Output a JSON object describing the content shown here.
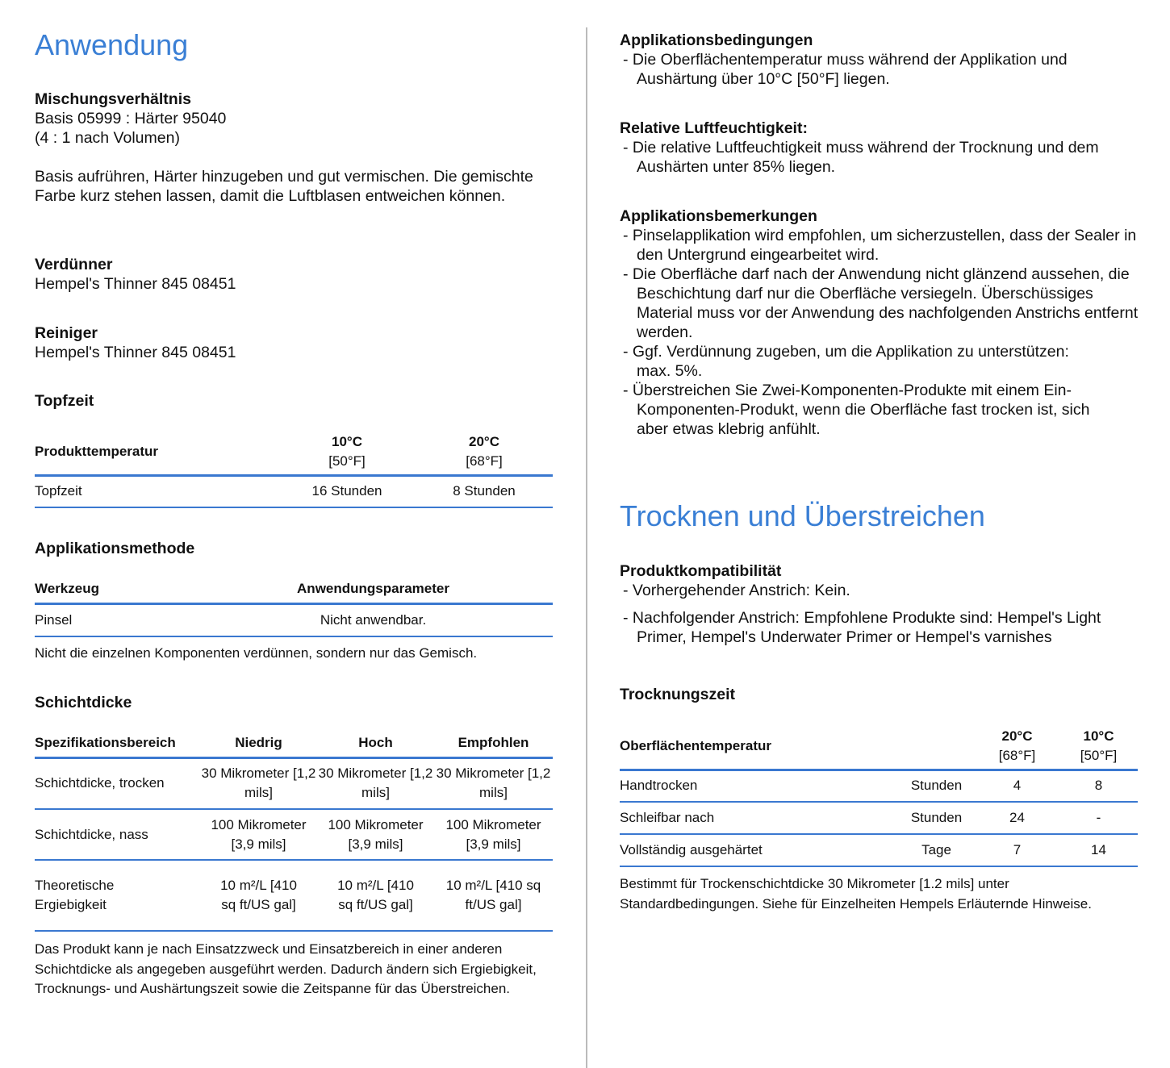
{
  "left": {
    "title": "Anwendung",
    "mixing": {
      "heading": "Mischungsverhältnis",
      "lines": [
        "Basis 05999 : Härter 95040",
        "(4 : 1 nach Volumen)"
      ]
    },
    "mixing_text": "Basis aufrühren, Härter hinzugeben und gut vermischen. Die gemischte Farbe kurz stehen lassen, damit die Luftblasen entweichen können.",
    "thinner": {
      "heading": "Verdünner",
      "value": "Hempel's Thinner 845 08451"
    },
    "cleaner": {
      "heading": "Reiniger",
      "value": "Hempel's Thinner 845 08451"
    },
    "potlife": {
      "heading": "Topfzeit",
      "table": {
        "headers": [
          {
            "label": "Produkttemperatur"
          },
          {
            "label": "10°C",
            "sub": "[50°F]"
          },
          {
            "label": "20°C",
            "sub": "[68°F]"
          }
        ],
        "rows": [
          [
            "Topfzeit",
            "16 Stunden",
            "8 Stunden"
          ]
        ]
      }
    },
    "method": {
      "heading": "Applikationsmethode",
      "table": {
        "headers": [
          "Werkzeug",
          "Anwendungsparameter"
        ],
        "rows": [
          [
            "Pinsel",
            "Nicht anwendbar."
          ]
        ]
      },
      "note": "Nicht die einzelnen Komponenten verdünnen, sondern nur das Gemisch."
    },
    "film": {
      "heading": "Schichtdicke",
      "table": {
        "headers": [
          "Spezifikationsbereich",
          "Niedrig",
          "Hoch",
          "Empfohlen"
        ],
        "rows": [
          [
            "Schichtdicke, trocken",
            "30 Mikrometer [1,2 mils]",
            "30 Mikrometer [1,2 mils]",
            "30 Mikrometer [1,2 mils]"
          ],
          [
            "Schichtdicke, nass",
            "100 Mikrometer [3,9 mils]",
            "100 Mikrometer [3,9 mils]",
            "100 Mikrometer [3,9 mils]"
          ],
          [
            "Theoretische Ergiebigkeit",
            "10 m²/L [410 sq ft/US gal]",
            "10 m²/L [410 sq ft/US gal]",
            "10 m²/L [410 sq ft/US gal]"
          ]
        ]
      },
      "note": "Das Produkt kann je nach Einsatzzweck und Einsatzbereich in einer anderen Schichtdicke als angegeben ausgeführt werden. Dadurch ändern sich Ergiebigkeit, Trocknungs- und Aushärtungszeit sowie die Zeitspanne für das Überstreichen."
    }
  },
  "right": {
    "conditions": {
      "heading": "Applikationsbedingungen",
      "items": [
        "Die Oberflächentemperatur muss während der Applikation und Aushärtung über 10°C [50°F] liegen."
      ]
    },
    "humidity": {
      "heading": "Relative Luftfeuchtigkeit:",
      "items": [
        "Die relative Luftfeuchtigkeit muss während der Trocknung und dem Aushärten unter 85% liegen."
      ]
    },
    "remarks": {
      "heading": "Applikationsbemerkungen",
      "items": [
        "Pinselapplikation wird empfohlen, um sicherzustellen, dass der Sealer in den Untergrund eingearbeitet wird.",
        "Die Oberfläche darf nach der Anwendung nicht glänzend aussehen, die Beschichtung darf nur die Oberfläche versiegeln. Überschüssiges Material muss vor der Anwendung des nachfolgenden Anstrichs entfernt werden.",
        "Ggf. Verdünnung zugeben, um die Applikation zu unterstützen: max. 5%.",
        "Überstreichen Sie Zwei-Komponenten-Produkte mit einem Ein-Komponenten-Produkt, wenn die Oberfläche fast trocken ist, sich aber etwas klebrig anfühlt."
      ]
    },
    "title": "Trocknen und Überstreichen",
    "compat": {
      "heading": "Produktkompatibilität",
      "items": [
        "Vorhergehender Anstrich: Kein.",
        "Nachfolgender Anstrich: Empfohlene Produkte sind: Hempel's Light Primer, Hempel's Underwater Primer or Hempel's varnishes"
      ]
    },
    "drying": {
      "heading": "Trocknungszeit",
      "table": {
        "headers": [
          {
            "label": "Oberflächentemperatur"
          },
          {
            "label": ""
          },
          {
            "label": "20°C",
            "sub": "[68°F]"
          },
          {
            "label": "10°C",
            "sub": "[50°F]"
          }
        ],
        "rows": [
          [
            "Handtrocken",
            "Stunden",
            "4",
            "8"
          ],
          [
            "Schleifbar nach",
            "Stunden",
            "24",
            "-"
          ],
          [
            "Vollständig ausgehärtet",
            "Tage",
            "7",
            "14"
          ]
        ]
      },
      "note": "Bestimmt für Trockenschichtdicke 30 Mikrometer [1.2 mils] unter Standardbedingungen. Siehe für Einzelheiten Hempels Erläuternde Hinweise."
    }
  },
  "colors": {
    "accent": "#3a7fd5",
    "rule": "#3a78d0",
    "divider": "#bbbbbb"
  }
}
